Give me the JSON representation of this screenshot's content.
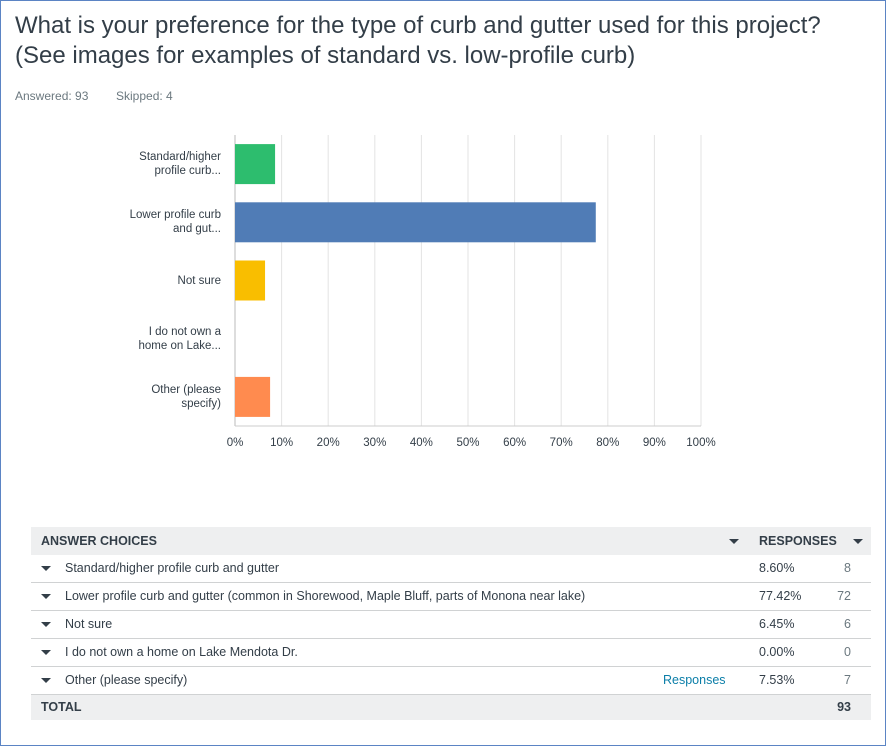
{
  "header": {
    "title": "What is your preference for the type of curb and gutter used for this project? (See images for examples of standard vs. low-profile curb)",
    "answered": "Answered: 93",
    "skipped": "Skipped: 4"
  },
  "chart_data": {
    "type": "bar",
    "orientation": "horizontal",
    "categories": [
      "Standard/higher profile curb...",
      "Lower profile curb and gut...",
      "Not sure",
      "I do not own a home on Lake...",
      "Other (please specify)"
    ],
    "values": [
      8.6,
      77.42,
      6.45,
      0,
      7.53
    ],
    "colors": [
      "#2dbd6e",
      "#507cb6",
      "#f9be00",
      "#6bc8cd",
      "#ff8b4f"
    ],
    "xlim": [
      0,
      100
    ],
    "xticks": [
      {
        "value": 0,
        "label": "0%"
      },
      {
        "value": 10,
        "label": "10%"
      },
      {
        "value": 20,
        "label": "20%"
      },
      {
        "value": 30,
        "label": "30%"
      },
      {
        "value": 40,
        "label": "40%"
      },
      {
        "value": 50,
        "label": "50%"
      },
      {
        "value": 60,
        "label": "60%"
      },
      {
        "value": 70,
        "label": "70%"
      },
      {
        "value": 80,
        "label": "80%"
      },
      {
        "value": 90,
        "label": "90%"
      },
      {
        "value": 100,
        "label": "100%"
      }
    ],
    "grid": true
  },
  "table": {
    "columns": [
      "ANSWER CHOICES",
      "RESPONSES"
    ],
    "rows": [
      [
        "Standard/higher profile curb and gutter",
        "8.60%",
        8
      ],
      [
        "Lower profile curb and gutter (common in Shorewood, Maple Bluff, parts of Monona near lake)",
        "77.42%",
        72
      ],
      [
        "Not sure",
        "6.45%",
        6
      ],
      [
        "I do not own a home on Lake Mendota Dr.",
        "0.00%",
        0
      ],
      [
        "Other (please specify)",
        "7.53%",
        7
      ]
    ],
    "link": "Responses",
    "total": [
      "TOTAL",
      93
    ]
  }
}
